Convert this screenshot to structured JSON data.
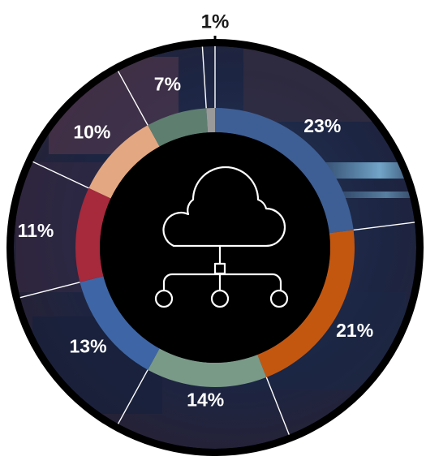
{
  "chart_data": {
    "type": "pie",
    "title": "",
    "categories": [
      "",
      "",
      "",
      "",
      "",
      "",
      "",
      ""
    ],
    "values": [
      23,
      21,
      14,
      13,
      11,
      10,
      7,
      1
    ],
    "labels": [
      "23%",
      "21%",
      "14%",
      "13%",
      "11%",
      "10%",
      "7%",
      "1%"
    ],
    "ring_colors": [
      "#3e5f95",
      "#c4570f",
      "#7a9a88",
      "#3e66a6",
      "#a6293c",
      "#e3a882",
      "#5e7e70",
      "#9a9a9a"
    ],
    "center_icon": "cloud-network-icon",
    "legend": "none"
  },
  "colors": {
    "outer_ring": "#000000",
    "center": "#000000",
    "label_text": "#ffffff",
    "divider": "#ffffff",
    "background_tint": "#1e2a48"
  }
}
